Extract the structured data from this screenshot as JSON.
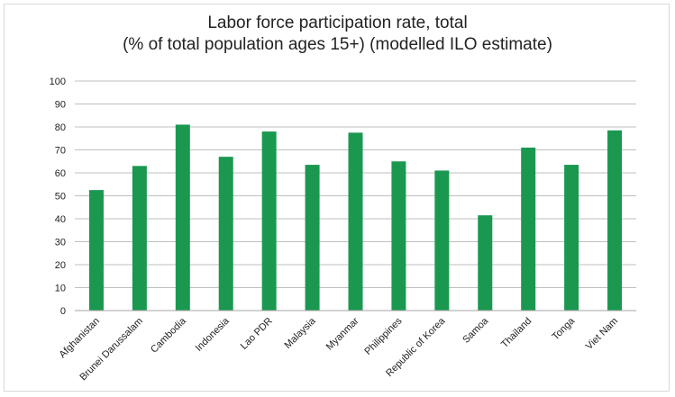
{
  "chart_data": {
    "type": "bar",
    "title": "Labor force participation rate, total",
    "subtitle": "(% of total population ages 15+) (modelled ILO estimate)",
    "categories": [
      "Afghanistan",
      "Brunei Darussalam",
      "Cambodia",
      "Indonesia",
      "Lao PDR",
      "Malaysia",
      "Myanmar",
      "Philippines",
      "Republic of Korea",
      "Samoa",
      "Thailand",
      "Tonga",
      "Viet Nam"
    ],
    "values": [
      52.5,
      63,
      81,
      67,
      78,
      63.5,
      77.5,
      65,
      61,
      41.5,
      71,
      63.5,
      78.5
    ],
    "ylim": [
      0,
      100
    ],
    "yticks": [
      "0",
      "10",
      "20",
      "30",
      "40",
      "50",
      "60",
      "70",
      "80",
      "90",
      "100"
    ],
    "grid": true,
    "bar_color": "#1a9850",
    "grid_color": "#bfbfbf"
  }
}
